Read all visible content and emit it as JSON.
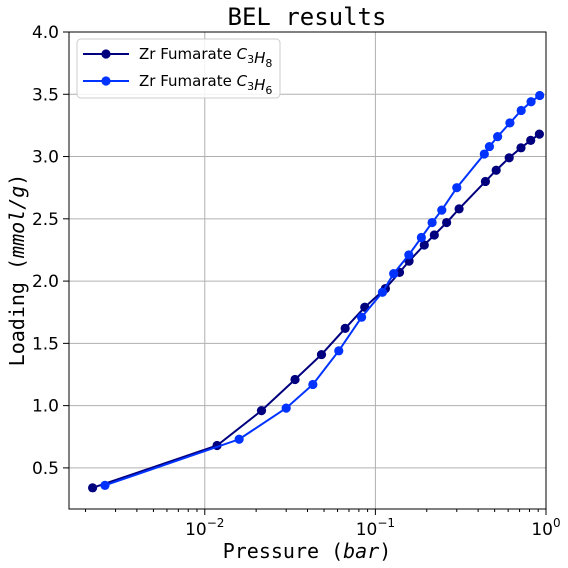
{
  "chart_data": {
    "type": "line",
    "title": "BEL results",
    "xlabel": {
      "prefix": "Pressure (",
      "var": "bar",
      "suffix": ")"
    },
    "ylabel": {
      "prefix": "Loading (",
      "var": "mmol/g",
      "suffix": ")"
    },
    "xscale": "log",
    "xlim": [
      0.0016,
      1.0
    ],
    "ylim": [
      0.17,
      4.0
    ],
    "grid": true,
    "legend_position": "top-left",
    "x_ticks": [
      {
        "value": 0.01,
        "base": "10",
        "exp": "−2"
      },
      {
        "value": 0.1,
        "base": "10",
        "exp": "−1"
      },
      {
        "value": 1.0,
        "base": "10",
        "exp": "0"
      }
    ],
    "y_ticks": [
      "0.5",
      "1.0",
      "1.5",
      "2.0",
      "2.5",
      "3.0",
      "3.5",
      "4.0"
    ],
    "series": [
      {
        "name": "Zr Fumarate C3H8",
        "legend": {
          "prefix": "Zr Fumarate ",
          "chem": [
            [
              "C",
              "3"
            ],
            [
              "H",
              "8"
            ]
          ]
        },
        "color": "#00007f",
        "x": [
          0.0022,
          0.0118,
          0.0215,
          0.0338,
          0.0483,
          0.0665,
          0.0866,
          0.1145,
          0.1385,
          0.1575,
          0.1935,
          0.2215,
          0.2615,
          0.3095,
          0.4415,
          0.5105,
          0.6085,
          0.7135,
          0.8135,
          0.9145
        ],
        "y": [
          0.34,
          0.68,
          0.96,
          1.21,
          1.41,
          1.62,
          1.79,
          1.94,
          2.07,
          2.16,
          2.29,
          2.37,
          2.47,
          2.58,
          2.8,
          2.89,
          2.99,
          3.07,
          3.13,
          3.18
        ]
      },
      {
        "name": "Zr Fumarate C3H6",
        "legend": {
          "prefix": "Zr Fumarate ",
          "chem": [
            [
              "C",
              "3"
            ],
            [
              "H",
              "6"
            ]
          ]
        },
        "color": "#0033ff",
        "x": [
          0.0026,
          0.0159,
          0.03,
          0.043,
          0.061,
          0.083,
          0.11,
          0.128,
          0.157,
          0.186,
          0.215,
          0.245,
          0.3,
          0.435,
          0.466,
          0.5205,
          0.6145,
          0.7155,
          0.8175,
          0.9185
        ],
        "y": [
          0.36,
          0.73,
          0.98,
          1.17,
          1.44,
          1.71,
          1.91,
          2.06,
          2.21,
          2.35,
          2.47,
          2.57,
          2.75,
          3.02,
          3.08,
          3.16,
          3.27,
          3.37,
          3.44,
          3.49
        ]
      }
    ]
  }
}
